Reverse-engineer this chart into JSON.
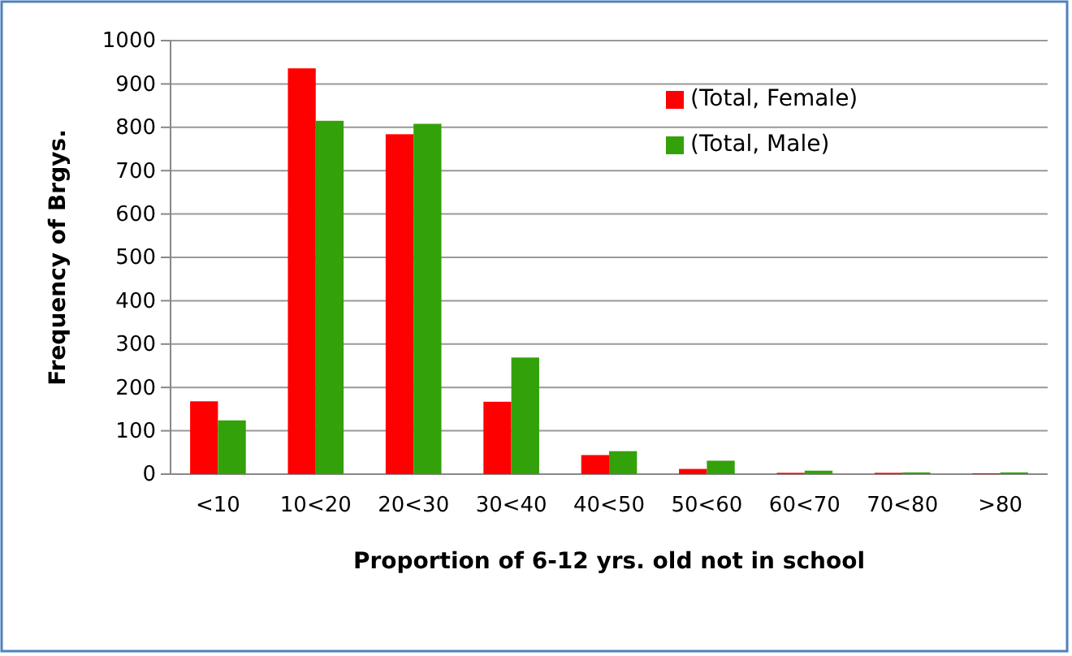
{
  "chart_data": {
    "type": "bar",
    "xlabel": "Proportion of 6-12 yrs. old not in school",
    "ylabel": "Frequency of Brgys.",
    "categories": [
      "<10",
      "10<20",
      "20<30",
      "30<40",
      "40<50",
      "50<60",
      "60<70",
      "70<80",
      ">80"
    ],
    "series": [
      {
        "name": "(Total, Female)",
        "color": "#ff0000",
        "values": [
          168,
          936,
          784,
          167,
          44,
          12,
          3,
          3,
          2
        ]
      },
      {
        "name": "(Total, Male)",
        "color": "#33a10a",
        "values": [
          124,
          815,
          808,
          269,
          53,
          31,
          8,
          4,
          4
        ]
      }
    ],
    "ylim": [
      0,
      1000
    ],
    "yticks": [
      0,
      100,
      200,
      300,
      400,
      500,
      600,
      700,
      800,
      900,
      1000
    ],
    "grid": "y",
    "legend": "top right"
  }
}
